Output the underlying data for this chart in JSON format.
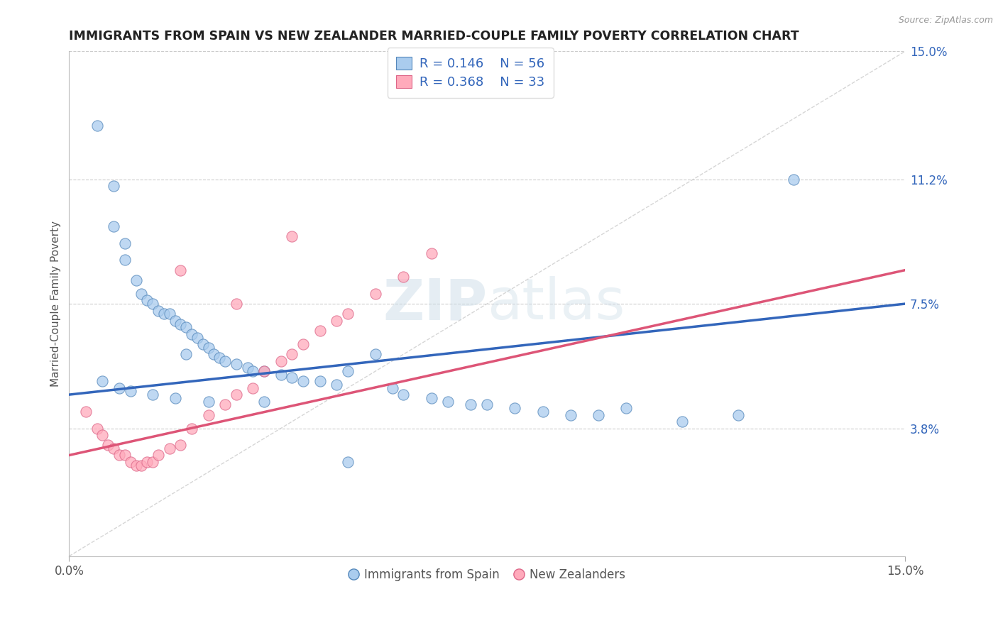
{
  "title": "IMMIGRANTS FROM SPAIN VS NEW ZEALANDER MARRIED-COUPLE FAMILY POVERTY CORRELATION CHART",
  "source": "Source: ZipAtlas.com",
  "ylabel": "Married-Couple Family Poverty",
  "xlim": [
    0.0,
    0.15
  ],
  "ylim": [
    0.0,
    0.15
  ],
  "ytick_labels_right": [
    "3.8%",
    "7.5%",
    "11.2%",
    "15.0%"
  ],
  "ytick_values_right": [
    0.038,
    0.075,
    0.112,
    0.15
  ],
  "legend_r1": "R = 0.146",
  "legend_n1": "N = 56",
  "legend_r2": "R = 0.368",
  "legend_n2": "N = 33",
  "legend_label1": "Immigrants from Spain",
  "legend_label2": "New Zealanders",
  "color_blue_face": "#AACCEE",
  "color_blue_edge": "#5588BB",
  "color_pink_face": "#FFAABB",
  "color_pink_edge": "#DD6688",
  "color_line_blue": "#3366BB",
  "color_line_pink": "#DD5577",
  "color_diag": "#CCCCCC",
  "watermark_color": "#DDEEEE",
  "title_color": "#222222",
  "title_fontsize": 12.5,
  "blue_trend_x0": 0.0,
  "blue_trend_y0": 0.048,
  "blue_trend_x1": 0.15,
  "blue_trend_y1": 0.075,
  "pink_trend_x0": 0.0,
  "pink_trend_y0": 0.03,
  "pink_trend_x1": 0.15,
  "pink_trend_y1": 0.085,
  "scatter_blue_x": [
    0.005,
    0.008,
    0.008,
    0.01,
    0.01,
    0.012,
    0.013,
    0.014,
    0.015,
    0.016,
    0.017,
    0.018,
    0.019,
    0.02,
    0.021,
    0.021,
    0.022,
    0.023,
    0.024,
    0.025,
    0.026,
    0.027,
    0.028,
    0.03,
    0.032,
    0.033,
    0.035,
    0.038,
    0.04,
    0.042,
    0.045,
    0.048,
    0.05,
    0.055,
    0.058,
    0.06,
    0.065,
    0.068,
    0.072,
    0.075,
    0.08,
    0.085,
    0.09,
    0.095,
    0.1,
    0.11,
    0.12,
    0.13,
    0.006,
    0.009,
    0.011,
    0.015,
    0.019,
    0.025,
    0.035,
    0.05
  ],
  "scatter_blue_y": [
    0.128,
    0.11,
    0.098,
    0.093,
    0.088,
    0.082,
    0.078,
    0.076,
    0.075,
    0.073,
    0.072,
    0.072,
    0.07,
    0.069,
    0.068,
    0.06,
    0.066,
    0.065,
    0.063,
    0.062,
    0.06,
    0.059,
    0.058,
    0.057,
    0.056,
    0.055,
    0.055,
    0.054,
    0.053,
    0.052,
    0.052,
    0.051,
    0.055,
    0.06,
    0.05,
    0.048,
    0.047,
    0.046,
    0.045,
    0.045,
    0.044,
    0.043,
    0.042,
    0.042,
    0.044,
    0.04,
    0.042,
    0.112,
    0.052,
    0.05,
    0.049,
    0.048,
    0.047,
    0.046,
    0.046,
    0.028
  ],
  "scatter_pink_x": [
    0.003,
    0.005,
    0.006,
    0.007,
    0.008,
    0.009,
    0.01,
    0.011,
    0.012,
    0.013,
    0.014,
    0.015,
    0.016,
    0.018,
    0.02,
    0.022,
    0.025,
    0.028,
    0.03,
    0.033,
    0.035,
    0.038,
    0.04,
    0.042,
    0.045,
    0.048,
    0.05,
    0.055,
    0.06,
    0.065,
    0.02,
    0.03,
    0.04
  ],
  "scatter_pink_y": [
    0.043,
    0.038,
    0.036,
    0.033,
    0.032,
    0.03,
    0.03,
    0.028,
    0.027,
    0.027,
    0.028,
    0.028,
    0.03,
    0.032,
    0.033,
    0.038,
    0.042,
    0.045,
    0.048,
    0.05,
    0.055,
    0.058,
    0.06,
    0.063,
    0.067,
    0.07,
    0.072,
    0.078,
    0.083,
    0.09,
    0.085,
    0.075,
    0.095
  ]
}
